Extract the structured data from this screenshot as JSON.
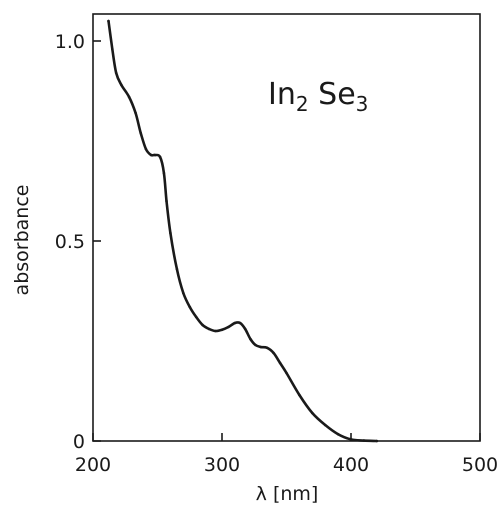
{
  "chart_data": {
    "type": "line",
    "title": "",
    "xlabel": "λ [nm]",
    "ylabel": "absorbance",
    "xlim": [
      200,
      500
    ],
    "ylim": [
      0,
      1.05
    ],
    "grid": false,
    "x_ticks": [
      {
        "value": 200,
        "label": "200"
      },
      {
        "value": 300,
        "label": "300"
      },
      {
        "value": 400,
        "label": "400"
      },
      {
        "value": 500,
        "label": "500"
      }
    ],
    "y_ticks": [
      {
        "value": 0,
        "label": "0"
      },
      {
        "value": 0.5,
        "label": "0.5"
      },
      {
        "value": 1.0,
        "label": "1.0"
      }
    ],
    "annotation": {
      "parts": [
        {
          "text": "In",
          "sub": false
        },
        {
          "text": "2",
          "sub": true
        },
        {
          "text": " Se",
          "sub": false
        },
        {
          "text": "3",
          "sub": true
        }
      ]
    },
    "series": [
      {
        "color": "#1a1a1a",
        "x": [
          212,
          215,
          218,
          222,
          228,
          233,
          237,
          241,
          245,
          248,
          252,
          255,
          257,
          260,
          265,
          270,
          275,
          280,
          285,
          290,
          295,
          300,
          305,
          310,
          314,
          318,
          322,
          326,
          330,
          335,
          340,
          345,
          350,
          360,
          370,
          380,
          390,
          400,
          410,
          420
        ],
        "y": [
          1.05,
          0.98,
          0.92,
          0.89,
          0.86,
          0.82,
          0.77,
          0.73,
          0.715,
          0.715,
          0.71,
          0.67,
          0.6,
          0.52,
          0.43,
          0.37,
          0.335,
          0.31,
          0.29,
          0.28,
          0.275,
          0.278,
          0.285,
          0.295,
          0.295,
          0.28,
          0.255,
          0.24,
          0.235,
          0.233,
          0.22,
          0.195,
          0.17,
          0.115,
          0.07,
          0.04,
          0.017,
          0.004,
          0.001,
          0.0
        ]
      }
    ]
  }
}
